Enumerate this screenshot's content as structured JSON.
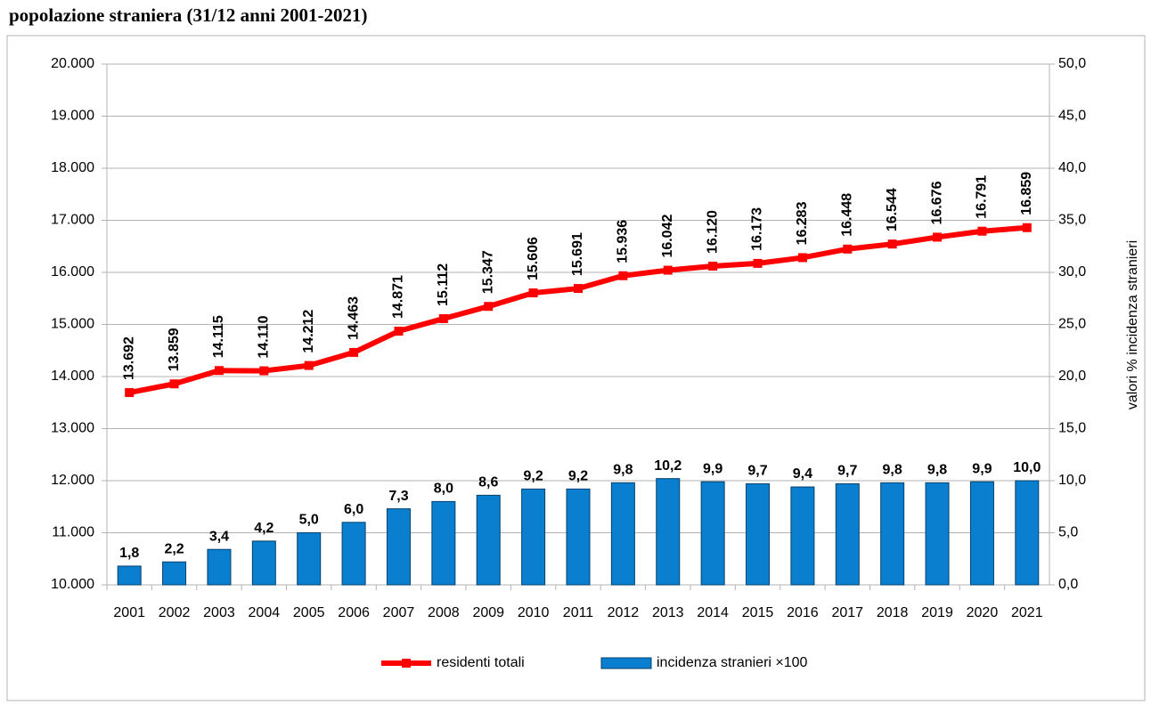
{
  "chart_data": {
    "type": "combo",
    "title": "popolazione straniera (31/12 anni 2001-2021)",
    "y2label": "valori % incidenza stranieri",
    "categories": [
      "2001",
      "2002",
      "2003",
      "2004",
      "2005",
      "2006",
      "2007",
      "2008",
      "2009",
      "2010",
      "2011",
      "2012",
      "2013",
      "2014",
      "2015",
      "2016",
      "2017",
      "2018",
      "2019",
      "2020",
      "2021"
    ],
    "series": [
      {
        "name": "residenti totali",
        "type": "line",
        "color": "#ff0000",
        "axis": "y",
        "values": [
          13692,
          13859,
          14115,
          14110,
          14212,
          14463,
          14871,
          15112,
          15347,
          15606,
          15691,
          15936,
          16042,
          16120,
          16173,
          16283,
          16448,
          16544,
          16676,
          16791,
          16859
        ],
        "value_labels": [
          "13.692",
          "13.859",
          "14.115",
          "14.110",
          "14.212",
          "14.463",
          "14.871",
          "15.112",
          "15.347",
          "15.606",
          "15.691",
          "15.936",
          "16.042",
          "16.120",
          "16.173",
          "16.283",
          "16.448",
          "16.544",
          "16.676",
          "16.791",
          "16.859"
        ]
      },
      {
        "name": "incidenza stranieri ×100",
        "type": "bar",
        "color": "#0a7fcf",
        "axis": "y2",
        "values": [
          1.8,
          2.2,
          3.4,
          4.2,
          5.0,
          6.0,
          7.3,
          8.0,
          8.6,
          9.2,
          9.2,
          9.8,
          10.2,
          9.9,
          9.7,
          9.4,
          9.7,
          9.8,
          9.8,
          9.9,
          10.0
        ],
        "value_labels": [
          "1,8",
          "2,2",
          "3,4",
          "4,2",
          "5,0",
          "6,0",
          "7,3",
          "8,0",
          "8,6",
          "9,2",
          "9,2",
          "9,8",
          "10,2",
          "9,9",
          "9,7",
          "9,4",
          "9,7",
          "9,8",
          "9,8",
          "9,9",
          "10,0"
        ]
      }
    ],
    "ylim": [
      10000,
      20000
    ],
    "yticks": [
      {
        "value": 10000,
        "label": "10.000"
      },
      {
        "value": 11000,
        "label": "11.000"
      },
      {
        "value": 12000,
        "label": "12.000"
      },
      {
        "value": 13000,
        "label": "13.000"
      },
      {
        "value": 14000,
        "label": "14.000"
      },
      {
        "value": 15000,
        "label": "15.000"
      },
      {
        "value": 16000,
        "label": "16.000"
      },
      {
        "value": 17000,
        "label": "17.000"
      },
      {
        "value": 18000,
        "label": "18.000"
      },
      {
        "value": 19000,
        "label": "19.000"
      },
      {
        "value": 20000,
        "label": "20.000"
      }
    ],
    "y2lim": [
      0,
      50
    ],
    "y2ticks": [
      {
        "value": 0,
        "label": "0,0"
      },
      {
        "value": 5,
        "label": "5,0"
      },
      {
        "value": 10,
        "label": "10,0"
      },
      {
        "value": 15,
        "label": "15,0"
      },
      {
        "value": 20,
        "label": "20,0"
      },
      {
        "value": 25,
        "label": "25,0"
      },
      {
        "value": 30,
        "label": "30,0"
      },
      {
        "value": 35,
        "label": "35,0"
      },
      {
        "value": 40,
        "label": "40,0"
      },
      {
        "value": 45,
        "label": "45,0"
      },
      {
        "value": 50,
        "label": "50,0"
      }
    ],
    "grid": true,
    "legend": "bottom"
  }
}
